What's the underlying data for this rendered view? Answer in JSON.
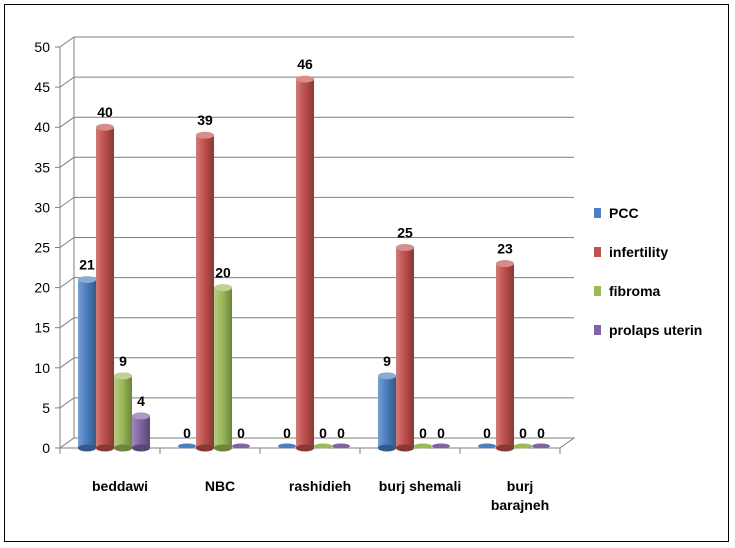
{
  "chart_data": {
    "type": "bar",
    "categories": [
      "beddawi",
      "NBC",
      "rashidieh",
      "burj shemali",
      "burj barajneh"
    ],
    "series": [
      {
        "name": "PCC",
        "values": [
          21,
          0,
          0,
          9,
          0
        ],
        "color": "#4a7fc1"
      },
      {
        "name": "infertility",
        "values": [
          40,
          39,
          46,
          25,
          23
        ],
        "color": "#c0504d"
      },
      {
        "name": "fibroma",
        "values": [
          9,
          20,
          0,
          0,
          0
        ],
        "color": "#9bbb59"
      },
      {
        "name": "prolaps uterin",
        "values": [
          4,
          0,
          0,
          0,
          0
        ],
        "color": "#8064a2"
      }
    ],
    "ylim": [
      0,
      50
    ],
    "yticks": [
      0,
      5,
      10,
      15,
      20,
      25,
      30,
      35,
      40,
      45,
      50
    ],
    "grid": true,
    "legend": "right",
    "title": "",
    "xlabel": "",
    "ylabel": ""
  }
}
